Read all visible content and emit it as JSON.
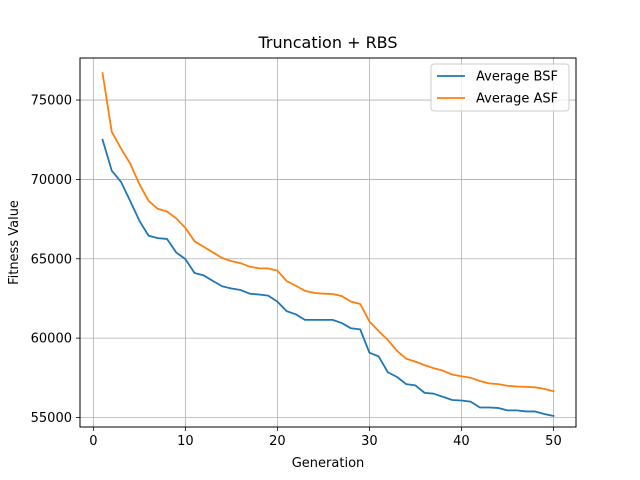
{
  "chart_data": {
    "type": "line",
    "title": "Truncation + RBS",
    "xlabel": "Generation",
    "ylabel": "Fitness Value",
    "xlim": [
      -1.45,
      52.45
    ],
    "ylim": [
      54400,
      77650
    ],
    "xticks": [
      0,
      10,
      20,
      30,
      40,
      50
    ],
    "yticks": [
      55000,
      60000,
      65000,
      70000,
      75000
    ],
    "grid": true,
    "legend_position": "top-right",
    "x": [
      1,
      2,
      3,
      4,
      5,
      6,
      7,
      8,
      9,
      10,
      11,
      12,
      13,
      14,
      15,
      16,
      17,
      18,
      19,
      20,
      21,
      22,
      23,
      24,
      25,
      26,
      27,
      28,
      29,
      30,
      31,
      32,
      33,
      34,
      35,
      36,
      37,
      38,
      39,
      40,
      41,
      42,
      43,
      44,
      45,
      46,
      47,
      48,
      49,
      50
    ],
    "series": [
      {
        "name": "Average BSF",
        "color": "#1f77b4",
        "values": [
          72500,
          70550,
          69850,
          68650,
          67400,
          66450,
          66300,
          66250,
          65400,
          64980,
          64100,
          63950,
          63600,
          63270,
          63130,
          63030,
          62800,
          62750,
          62680,
          62300,
          61700,
          61500,
          61150,
          61150,
          61150,
          61150,
          60950,
          60620,
          60550,
          59080,
          58850,
          57850,
          57550,
          57100,
          57020,
          56550,
          56500,
          56300,
          56100,
          56070,
          56000,
          55630,
          55630,
          55600,
          55450,
          55450,
          55380,
          55380,
          55220,
          55100
        ]
      },
      {
        "name": "Average ASF",
        "color": "#ff7f0e",
        "values": [
          76700,
          73000,
          71950,
          71000,
          69700,
          68650,
          68150,
          67980,
          67550,
          66950,
          66100,
          65750,
          65400,
          65050,
          64850,
          64720,
          64500,
          64400,
          64390,
          64250,
          63600,
          63300,
          62980,
          62850,
          62800,
          62780,
          62650,
          62300,
          62150,
          61050,
          60450,
          59880,
          59200,
          58700,
          58520,
          58300,
          58100,
          57950,
          57700,
          57600,
          57500,
          57300,
          57150,
          57100,
          57000,
          56950,
          56930,
          56900,
          56800,
          56650
        ]
      }
    ]
  }
}
